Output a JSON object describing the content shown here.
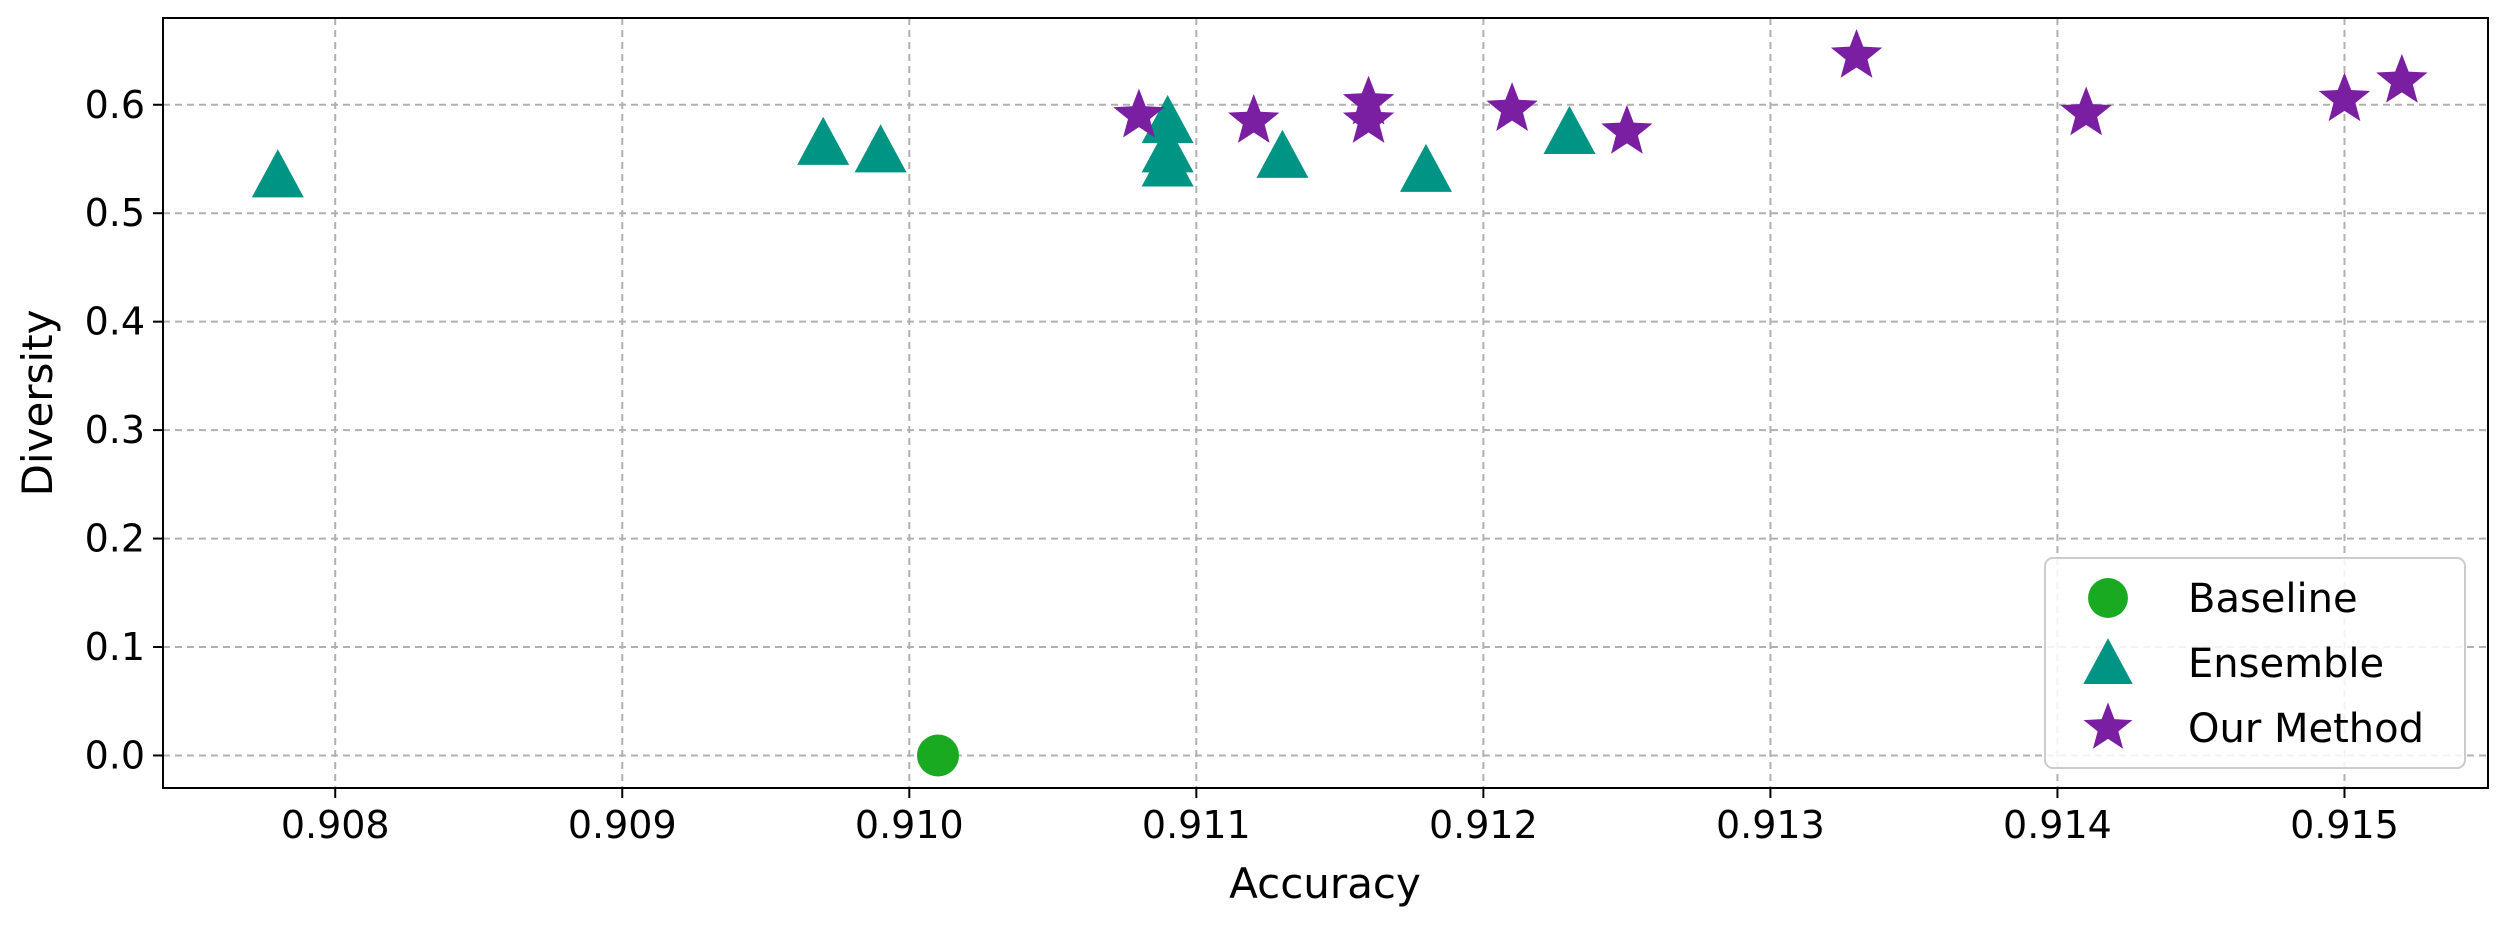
{
  "chart_data": {
    "type": "scatter",
    "title": "",
    "xlabel": "Accuracy",
    "ylabel": "Diversity",
    "xlim": [
      0.9074,
      0.9155
    ],
    "ylim": [
      -0.03,
      0.68
    ],
    "xticks": [
      "0.908",
      "0.909",
      "0.910",
      "0.911",
      "0.912",
      "0.913",
      "0.914",
      "0.915"
    ],
    "yticks": [
      "0.0",
      "0.1",
      "0.2",
      "0.3",
      "0.4",
      "0.5",
      "0.6"
    ],
    "grid": true,
    "legend_position": "lower-right",
    "series": [
      {
        "name": "Baseline",
        "marker": "circle",
        "color": "#1aaa22",
        "points": [
          [
            0.9101,
            0.0
          ]
        ]
      },
      {
        "name": "Ensemble",
        "marker": "triangle",
        "color": "#009485",
        "points": [
          [
            0.9078,
            0.535
          ],
          [
            0.9097,
            0.565
          ],
          [
            0.9099,
            0.558
          ],
          [
            0.9109,
            0.585
          ],
          [
            0.9109,
            0.558
          ],
          [
            0.9109,
            0.545
          ],
          [
            0.9113,
            0.553
          ],
          [
            0.9118,
            0.54
          ],
          [
            0.9123,
            0.575
          ]
        ]
      },
      {
        "name": "Our Method",
        "marker": "star",
        "color": "#7b1fa2",
        "points": [
          [
            0.9108,
            0.59
          ],
          [
            0.9112,
            0.585
          ],
          [
            0.9116,
            0.602
          ],
          [
            0.9116,
            0.585
          ],
          [
            0.9121,
            0.596
          ],
          [
            0.9125,
            0.575
          ],
          [
            0.9133,
            0.645
          ],
          [
            0.9141,
            0.592
          ],
          [
            0.915,
            0.605
          ],
          [
            0.9152,
            0.622
          ]
        ]
      }
    ]
  }
}
